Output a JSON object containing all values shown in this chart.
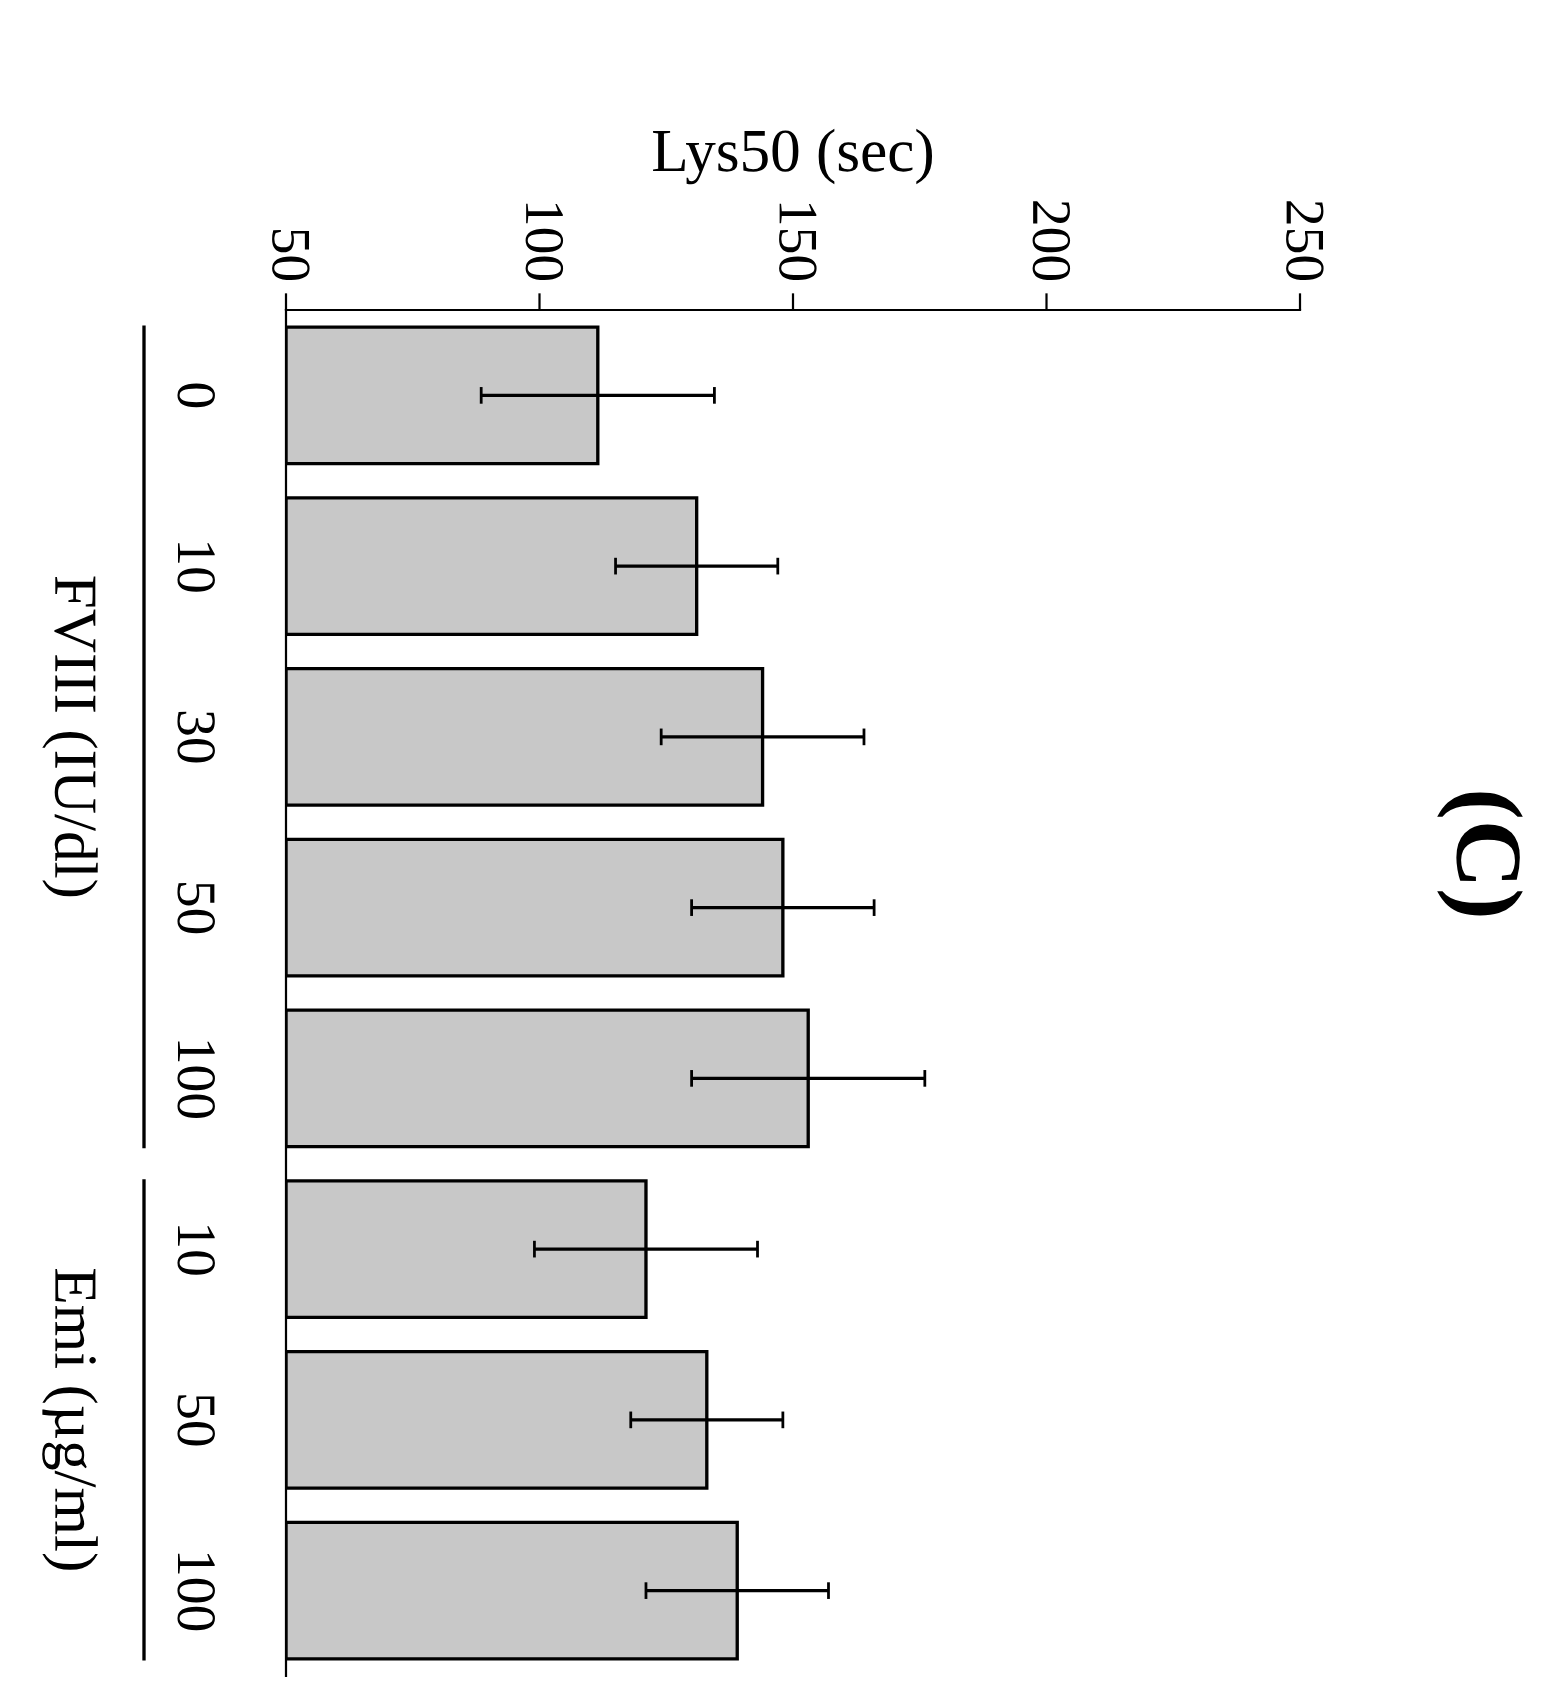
{
  "chart_data": {
    "type": "bar",
    "orientation": "horizontal",
    "title": "(C)",
    "xlabel": "Lys50 (sec)",
    "categories": [
      "0",
      "10",
      "30",
      "50",
      "100",
      "10",
      "50",
      "100"
    ],
    "values": [
      111.5,
      131,
      144,
      148,
      153,
      121,
      133,
      139
    ],
    "errors": [
      23,
      16,
      20,
      18,
      23,
      22,
      15,
      18
    ],
    "color": "#c8c8c8",
    "xlim": [
      50,
      250
    ],
    "xticks": [
      50,
      100,
      150,
      200,
      250
    ],
    "annotations": [
      "FVIII (IU/dl)",
      "Emi (µg/ml)"
    ],
    "grid": false
  }
}
